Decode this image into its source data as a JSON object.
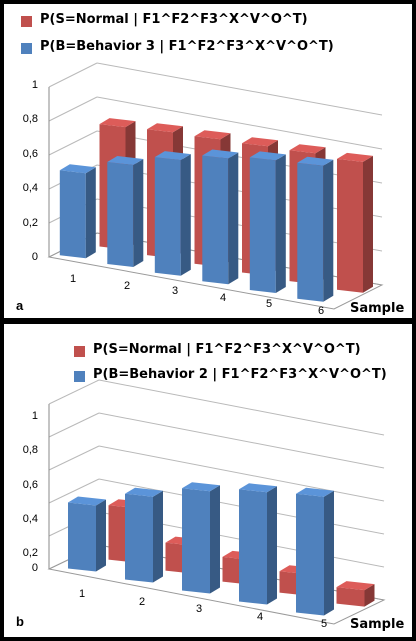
{
  "colors": {
    "red": "#c0504d",
    "blue": "#4f81bd"
  },
  "chart_data": [
    {
      "type": "bar",
      "panel_letter": "a",
      "xlabel": "Sample",
      "categories": [
        "1",
        "2",
        "3",
        "4",
        "5",
        "6"
      ],
      "yticks": [
        "1",
        "0,8",
        "0,6",
        "0,4",
        "0,2",
        "0"
      ],
      "ylim": [
        0,
        1
      ],
      "legend_position": "top",
      "series": [
        {
          "name": "P(S=Normal | F1^F2^F3^X^V^O^T)",
          "color": "red",
          "values": [
            0.72,
            0.74,
            0.75,
            0.76,
            0.77,
            0.77
          ]
        },
        {
          "name": "P(B=Behavior 3 | F1^F2^F3^X^V^O^T)",
          "color": "blue",
          "values": [
            0.5,
            0.6,
            0.68,
            0.74,
            0.78,
            0.8
          ]
        }
      ]
    },
    {
      "type": "bar",
      "panel_letter": "b",
      "xlabel": "Sample",
      "categories": [
        "1",
        "2",
        "3",
        "4",
        "5"
      ],
      "yticks": [
        "1",
        "0,8",
        "0,6",
        "0,4",
        "0,2",
        "0"
      ],
      "ylim": [
        0,
        1
      ],
      "legend_position": "top",
      "series": [
        {
          "name": "P(S=Normal | F1^F2^F3^X^V^O^T)",
          "color": "red",
          "values": [
            0.33,
            0.17,
            0.15,
            0.13,
            0.1
          ]
        },
        {
          "name": "P(B=Behavior 2 | F1^F2^F3^X^V^O^T)",
          "color": "blue",
          "values": [
            0.4,
            0.52,
            0.62,
            0.68,
            0.72
          ]
        }
      ]
    }
  ]
}
